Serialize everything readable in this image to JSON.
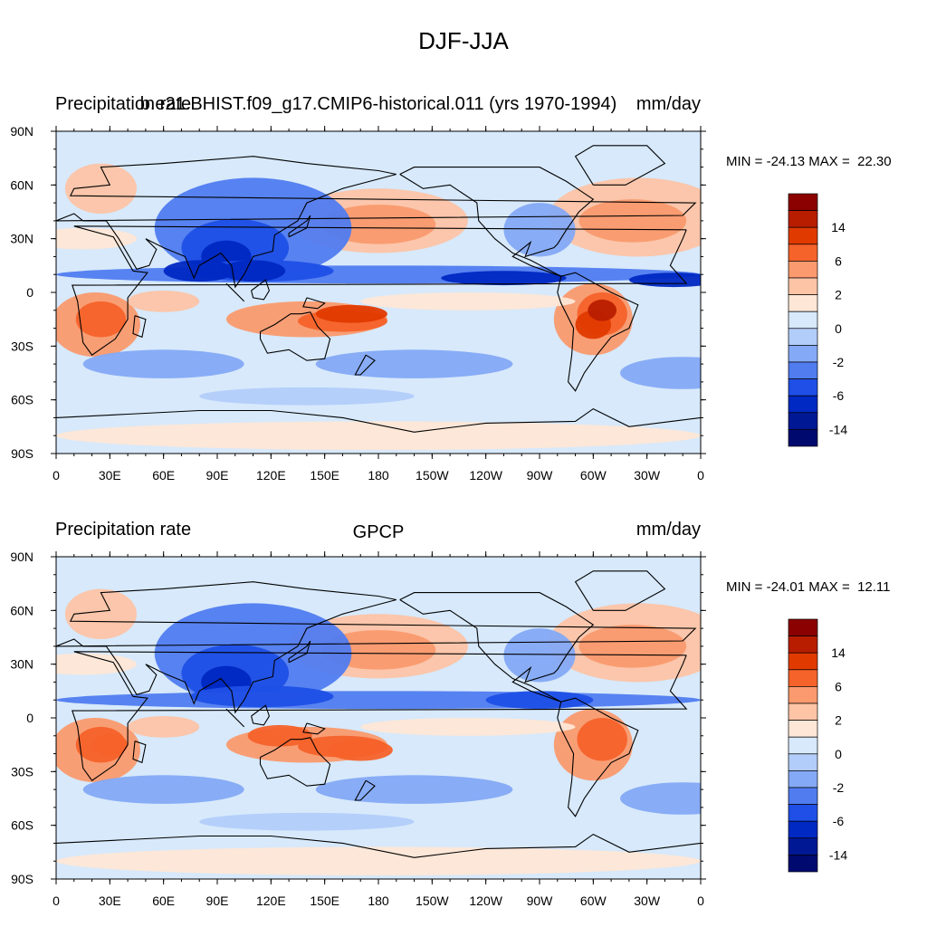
{
  "title": "DJF-JJA",
  "panels": [
    {
      "left_string": "Precipitation rate",
      "center_string": "b.e21.BHIST.f09_g17.CMIP6-historical.011 (yrs 1970-1994)",
      "right_string": "mm/day",
      "min_label": "MIN = -24.13",
      "max_label": "MAX =  22.30"
    },
    {
      "left_string": "Precipitation rate",
      "center_string": "GPCP",
      "right_string": "mm/day",
      "min_label": "MIN = -24.01",
      "max_label": "MAX =  12.11"
    }
  ],
  "map": {
    "lat_ticks": [
      "90N",
      "60N",
      "30N",
      "0",
      "30S",
      "60S",
      "90S"
    ],
    "lon_ticks": [
      "0",
      "30E",
      "60E",
      "90E",
      "120E",
      "150E",
      "180",
      "150W",
      "120W",
      "90W",
      "60W",
      "30W",
      "0"
    ]
  },
  "colorbar": {
    "labels": [
      "14",
      "6",
      "2",
      "0",
      "-2",
      "-6",
      "-14"
    ],
    "colors": [
      "#8b0000",
      "#b81d00",
      "#e03a00",
      "#f5622a",
      "#fa9a6e",
      "#fdc4a6",
      "#fee7d6",
      "#d7e9fb",
      "#b2cdfa",
      "#84a9f6",
      "#507cf0",
      "#1f4fe6",
      "#0028c2",
      "#001894",
      "#000a6e"
    ]
  }
}
